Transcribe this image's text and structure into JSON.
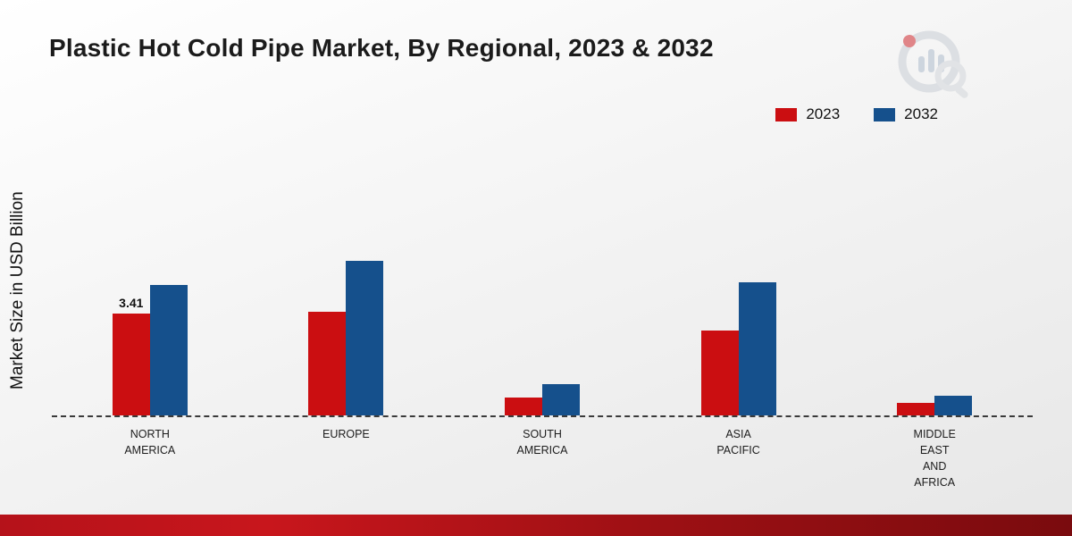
{
  "title": "Plastic Hot Cold Pipe Market, By Regional, 2023 & 2032",
  "y_axis_label": "Market Size in USD Billion",
  "legend": [
    {
      "label": "2023",
      "color": "#cb0e11"
    },
    {
      "label": "2032",
      "color": "#15508c"
    }
  ],
  "chart_data": {
    "type": "bar",
    "title": "Plastic Hot Cold Pipe Market, By Regional, 2023 & 2032",
    "ylabel": "Market Size in USD Billion",
    "xlabel": "",
    "categories": [
      "NORTH AMERICA",
      "EUROPE",
      "SOUTH AMERICA",
      "ASIA PACIFIC",
      "MIDDLE EAST AND AFRICA"
    ],
    "tick_labels": [
      "NORTH\nAMERICA",
      "EUROPE",
      "SOUTH\nAMERICA",
      "ASIA\nPACIFIC",
      "MIDDLE\nEAST\nAND\nAFRICA"
    ],
    "series": [
      {
        "name": "2023",
        "color": "#cb0e11",
        "values": [
          3.41,
          3.45,
          0.6,
          2.85,
          0.42
        ]
      },
      {
        "name": "2032",
        "color": "#15508c",
        "values": [
          4.35,
          5.15,
          1.05,
          4.45,
          0.65
        ]
      }
    ],
    "annotations": [
      {
        "series": "2023",
        "category_index": 0,
        "text": "3.41"
      }
    ],
    "ylim": [
      0,
      10
    ],
    "grid": false,
    "legend_position": "top-right",
    "baseline_style": "dashed"
  }
}
